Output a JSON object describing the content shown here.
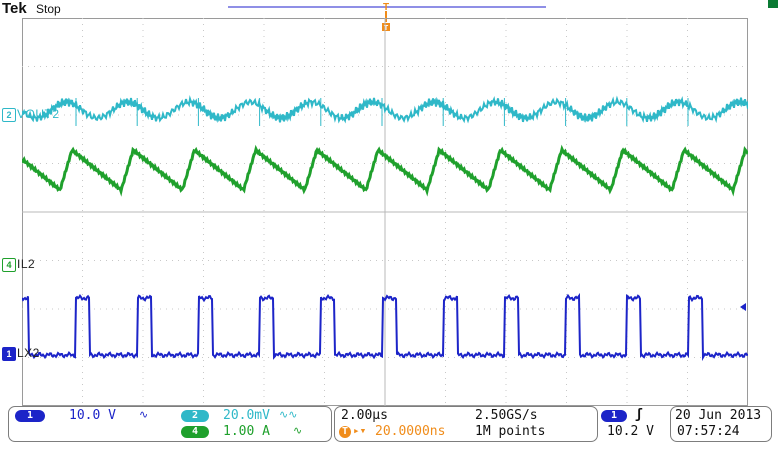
{
  "header": {
    "brand": "Tek",
    "status": "Stop"
  },
  "colors": {
    "ch1": "#1c24c8",
    "ch2": "#2fb8c8",
    "ch4": "#1fa02c",
    "trigger": "#f08c1a",
    "grid": "#b8b8b8",
    "graticule_dots": "#c8c8c8"
  },
  "channels": {
    "vout2": {
      "number": "2",
      "label": "VOUT2"
    },
    "il2": {
      "number": "4",
      "label": "IL2"
    },
    "lx2": {
      "number": "1",
      "label": "LX2"
    }
  },
  "trigger": {
    "label": "T"
  },
  "readouts": {
    "ch1": {
      "number": "1",
      "scale": "10.0 V",
      "bw": "∿"
    },
    "ch2": {
      "number": "2",
      "scale": "20.0mV",
      "bw": "∿∿"
    },
    "ch4": {
      "number": "4",
      "scale": "1.00 A",
      "bw": "∿"
    },
    "timebase": {
      "per_div": "2.00µs",
      "sample_rate": "2.50GS/s",
      "delay_icon": "T",
      "delay": "20.0000ns",
      "record": "1M points"
    },
    "trigger": {
      "source": "1",
      "slope": "ʃ",
      "level": "10.2 V"
    },
    "date": "20 Jun 2013",
    "time": "07:57:24"
  }
}
